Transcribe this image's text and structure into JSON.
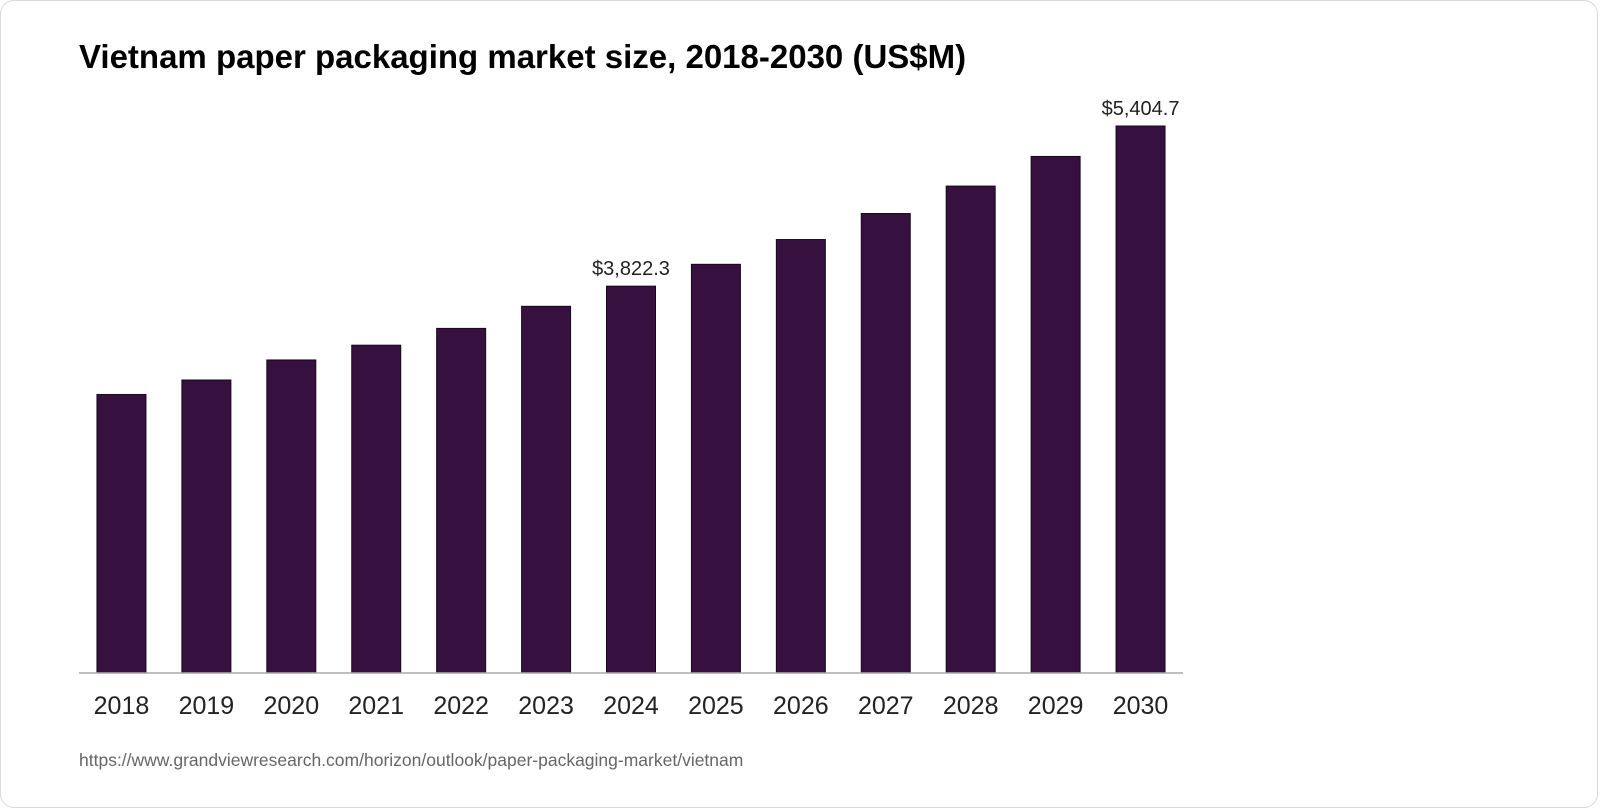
{
  "chart_data": {
    "type": "bar",
    "title": "Vietnam paper packaging market size, 2018-2030 (US$M)",
    "xlabel": "",
    "ylabel": "",
    "categories": [
      "2018",
      "2019",
      "2020",
      "2021",
      "2022",
      "2023",
      "2024",
      "2025",
      "2026",
      "2027",
      "2028",
      "2029",
      "2030"
    ],
    "values": [
      2752,
      2895,
      3093,
      3239,
      3405,
      3623,
      3822.3,
      4038,
      4283,
      4540,
      4811,
      5104,
      5404.7
    ],
    "data_labels": [
      {
        "category": "2024",
        "text": "$3,822.3"
      },
      {
        "category": "2030",
        "text": "$5,404.7"
      }
    ],
    "ylim": [
      0,
      5404.7
    ],
    "grid": false,
    "legend": "none",
    "bar_color": "#36103f"
  },
  "source": "https://www.grandviewresearch.com/horizon/outlook/paper-packaging-market/vietnam"
}
